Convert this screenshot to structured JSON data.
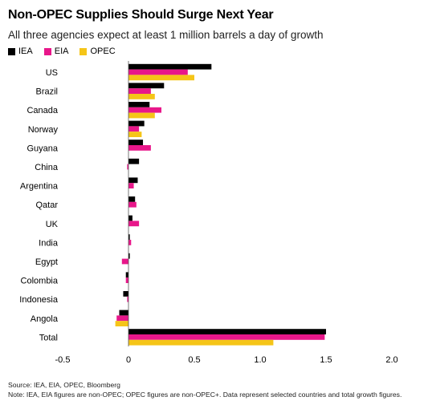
{
  "colors": {
    "IEA": "#000000",
    "EIA": "#e8178a",
    "OPEC": "#f5c518"
  },
  "chart_data": {
    "type": "bar",
    "orientation": "horizontal",
    "title": "Non-OPEC Supplies Should Surge Next Year",
    "subtitle": "All three agencies expect at least 1 million barrels a day of growth",
    "categories": [
      "US",
      "Brazil",
      "Canada",
      "Norway",
      "Guyana",
      "China",
      "Argentina",
      "Qatar",
      "UK",
      "India",
      "Egypt",
      "Colombia",
      "Indonesia",
      "Angola",
      "Total"
    ],
    "series": [
      {
        "name": "IEA",
        "values": [
          0.63,
          0.27,
          0.16,
          0.12,
          0.11,
          0.08,
          0.07,
          0.05,
          0.03,
          0.01,
          0.01,
          -0.02,
          -0.04,
          -0.07,
          1.5
        ]
      },
      {
        "name": "EIA",
        "values": [
          0.45,
          0.17,
          0.25,
          0.08,
          0.17,
          -0.01,
          0.04,
          0.06,
          0.08,
          0.02,
          -0.05,
          -0.02,
          -0.01,
          -0.09,
          1.49
        ]
      },
      {
        "name": "OPEC",
        "values": [
          0.5,
          0.2,
          0.2,
          0.1,
          0.0,
          0.0,
          0.0,
          0.0,
          0.0,
          0.0,
          0.0,
          0.0,
          0.0,
          -0.1,
          1.1
        ]
      }
    ],
    "xlim": [
      -0.5,
      2.0
    ],
    "xticks": [
      "-0.5",
      "0",
      "0.5",
      "1.0",
      "1.5",
      "2.0"
    ],
    "xtick_values": [
      -0.5,
      0,
      0.5,
      1.0,
      1.5,
      2.0
    ],
    "legend_position": "top-left",
    "grid": false
  },
  "footer": {
    "source": "Source: IEA, EIA, OPEC, Bloomberg",
    "note": "Note: IEA, EIA figures are non-OPEC; OPEC figures are non-OPEC+. Data represent selected countries and total growth figures."
  }
}
